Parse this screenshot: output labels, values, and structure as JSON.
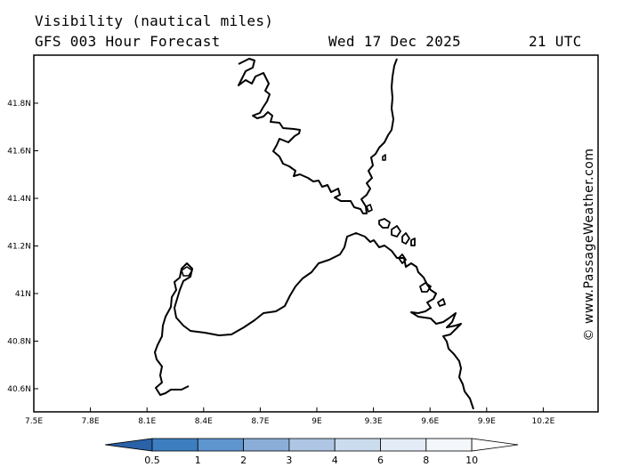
{
  "header": {
    "title": "Visibility (nautical miles)",
    "subtitle": "GFS 003 Hour Forecast",
    "date": "Wed 17 Dec 2025",
    "time": "21 UTC"
  },
  "map": {
    "region": "Corsica / Sardinia strait",
    "lon_ticks": [
      "7.5E",
      "7.8E",
      "8.1E",
      "8.4E",
      "8.7E",
      "9E",
      "9.3E",
      "9.6E",
      "9.9E",
      "10.2E"
    ],
    "lat_ticks": [
      "41.8N",
      "41.6N",
      "41.4N",
      "41.2N",
      "41N",
      "40.8N",
      "40.6N"
    ],
    "coastline_color": "#000000",
    "background_color": "#ffffff"
  },
  "legend": {
    "values": [
      "0.5",
      "1",
      "2",
      "3",
      "4",
      "6",
      "8",
      "10"
    ],
    "colors": [
      "#2a62a8",
      "#3d7ec0",
      "#5f96d0",
      "#8aaed8",
      "#aec6e4",
      "#cbdcee",
      "#e3ecf6",
      "#f3f7fb",
      "#ffffff"
    ]
  },
  "credit": "© www.PassageWeather.com"
}
